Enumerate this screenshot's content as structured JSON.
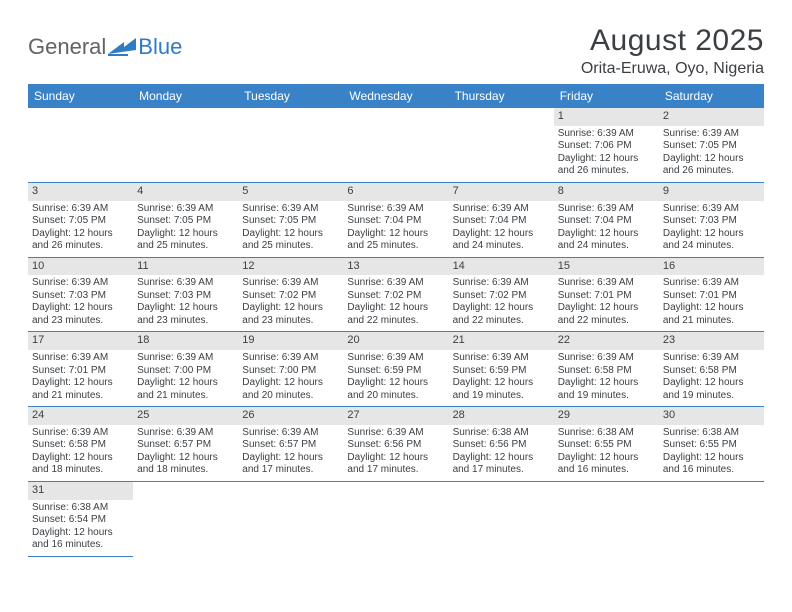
{
  "logo": {
    "textLeft": "General",
    "textRight": "Blue"
  },
  "header": {
    "title": "August 2025",
    "location": "Orita-Eruwa, Oyo, Nigeria"
  },
  "colors": {
    "headerBg": "#3a82c8",
    "headerText": "#ffffff",
    "bodyText": "#3b3f43",
    "dayBg": "#e6e6e6",
    "rowBorder": "#3a82c8",
    "logoGray": "#5f6468",
    "logoBlue": "#2f7bc4",
    "pageBg": "#ffffff"
  },
  "weekdays": [
    "Sunday",
    "Monday",
    "Tuesday",
    "Wednesday",
    "Thursday",
    "Friday",
    "Saturday"
  ],
  "weeks": [
    [
      null,
      null,
      null,
      null,
      null,
      {
        "n": "1",
        "sr": "6:39 AM",
        "ss": "7:06 PM",
        "dl": "12 hours and 26 minutes."
      },
      {
        "n": "2",
        "sr": "6:39 AM",
        "ss": "7:05 PM",
        "dl": "12 hours and 26 minutes."
      }
    ],
    [
      {
        "n": "3",
        "sr": "6:39 AM",
        "ss": "7:05 PM",
        "dl": "12 hours and 26 minutes."
      },
      {
        "n": "4",
        "sr": "6:39 AM",
        "ss": "7:05 PM",
        "dl": "12 hours and 25 minutes."
      },
      {
        "n": "5",
        "sr": "6:39 AM",
        "ss": "7:05 PM",
        "dl": "12 hours and 25 minutes."
      },
      {
        "n": "6",
        "sr": "6:39 AM",
        "ss": "7:04 PM",
        "dl": "12 hours and 25 minutes."
      },
      {
        "n": "7",
        "sr": "6:39 AM",
        "ss": "7:04 PM",
        "dl": "12 hours and 24 minutes."
      },
      {
        "n": "8",
        "sr": "6:39 AM",
        "ss": "7:04 PM",
        "dl": "12 hours and 24 minutes."
      },
      {
        "n": "9",
        "sr": "6:39 AM",
        "ss": "7:03 PM",
        "dl": "12 hours and 24 minutes."
      }
    ],
    [
      {
        "n": "10",
        "sr": "6:39 AM",
        "ss": "7:03 PM",
        "dl": "12 hours and 23 minutes."
      },
      {
        "n": "11",
        "sr": "6:39 AM",
        "ss": "7:03 PM",
        "dl": "12 hours and 23 minutes."
      },
      {
        "n": "12",
        "sr": "6:39 AM",
        "ss": "7:02 PM",
        "dl": "12 hours and 23 minutes."
      },
      {
        "n": "13",
        "sr": "6:39 AM",
        "ss": "7:02 PM",
        "dl": "12 hours and 22 minutes."
      },
      {
        "n": "14",
        "sr": "6:39 AM",
        "ss": "7:02 PM",
        "dl": "12 hours and 22 minutes."
      },
      {
        "n": "15",
        "sr": "6:39 AM",
        "ss": "7:01 PM",
        "dl": "12 hours and 22 minutes."
      },
      {
        "n": "16",
        "sr": "6:39 AM",
        "ss": "7:01 PM",
        "dl": "12 hours and 21 minutes."
      }
    ],
    [
      {
        "n": "17",
        "sr": "6:39 AM",
        "ss": "7:01 PM",
        "dl": "12 hours and 21 minutes."
      },
      {
        "n": "18",
        "sr": "6:39 AM",
        "ss": "7:00 PM",
        "dl": "12 hours and 21 minutes."
      },
      {
        "n": "19",
        "sr": "6:39 AM",
        "ss": "7:00 PM",
        "dl": "12 hours and 20 minutes."
      },
      {
        "n": "20",
        "sr": "6:39 AM",
        "ss": "6:59 PM",
        "dl": "12 hours and 20 minutes."
      },
      {
        "n": "21",
        "sr": "6:39 AM",
        "ss": "6:59 PM",
        "dl": "12 hours and 19 minutes."
      },
      {
        "n": "22",
        "sr": "6:39 AM",
        "ss": "6:58 PM",
        "dl": "12 hours and 19 minutes."
      },
      {
        "n": "23",
        "sr": "6:39 AM",
        "ss": "6:58 PM",
        "dl": "12 hours and 19 minutes."
      }
    ],
    [
      {
        "n": "24",
        "sr": "6:39 AM",
        "ss": "6:58 PM",
        "dl": "12 hours and 18 minutes."
      },
      {
        "n": "25",
        "sr": "6:39 AM",
        "ss": "6:57 PM",
        "dl": "12 hours and 18 minutes."
      },
      {
        "n": "26",
        "sr": "6:39 AM",
        "ss": "6:57 PM",
        "dl": "12 hours and 17 minutes."
      },
      {
        "n": "27",
        "sr": "6:39 AM",
        "ss": "6:56 PM",
        "dl": "12 hours and 17 minutes."
      },
      {
        "n": "28",
        "sr": "6:38 AM",
        "ss": "6:56 PM",
        "dl": "12 hours and 17 minutes."
      },
      {
        "n": "29",
        "sr": "6:38 AM",
        "ss": "6:55 PM",
        "dl": "12 hours and 16 minutes."
      },
      {
        "n": "30",
        "sr": "6:38 AM",
        "ss": "6:55 PM",
        "dl": "12 hours and 16 minutes."
      }
    ],
    [
      {
        "n": "31",
        "sr": "6:38 AM",
        "ss": "6:54 PM",
        "dl": "12 hours and 16 minutes."
      },
      null,
      null,
      null,
      null,
      null,
      null
    ]
  ],
  "labels": {
    "sunrise": "Sunrise:",
    "sunset": "Sunset:",
    "daylight": "Daylight:"
  }
}
